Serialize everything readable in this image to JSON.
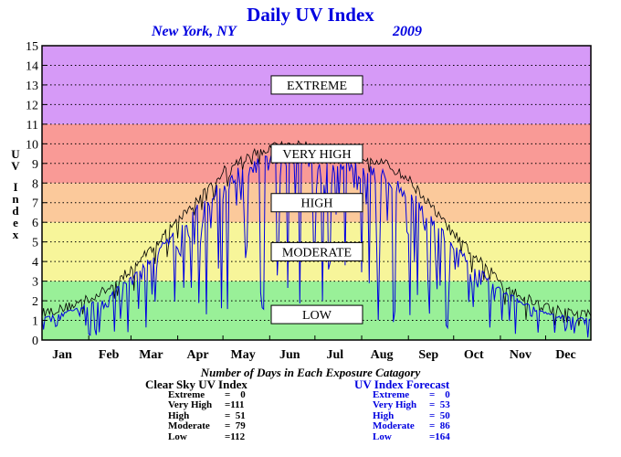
{
  "title": "Daily UV Index",
  "location": "New York, NY",
  "year": "2009",
  "ylabel": "UV Index",
  "colors": {
    "low": "#99f098",
    "moderate": "#f7f59a",
    "high": "#fbc99b",
    "very_high": "#f99a96",
    "extreme": "#d69af7",
    "clear_sky_line": "#000000",
    "forecast_line": "#0000e0"
  },
  "chart_data": {
    "type": "line",
    "title": "Daily UV Index",
    "ylabel": "UV Index",
    "ylim": [
      0,
      15
    ],
    "yticks": [
      0,
      1,
      2,
      3,
      4,
      5,
      6,
      7,
      8,
      9,
      10,
      11,
      12,
      13,
      14,
      15
    ],
    "grid": true,
    "xlim": [
      1,
      365
    ],
    "month_ticks": [
      {
        "label": "Jan",
        "day": 1
      },
      {
        "label": "Feb",
        "day": 32
      },
      {
        "label": "Mar",
        "day": 60
      },
      {
        "label": "Apr",
        "day": 91
      },
      {
        "label": "May",
        "day": 121
      },
      {
        "label": "Jun",
        "day": 152
      },
      {
        "label": "Jul",
        "day": 182
      },
      {
        "label": "Aug",
        "day": 213
      },
      {
        "label": "Sep",
        "day": 244
      },
      {
        "label": "Oct",
        "day": 274
      },
      {
        "label": "Nov",
        "day": 305
      },
      {
        "label": "Dec",
        "day": 335
      }
    ],
    "bands": [
      {
        "label": "LOW",
        "from": 0,
        "to": 3,
        "color": "#99f098"
      },
      {
        "label": "MODERATE",
        "from": 3,
        "to": 6,
        "color": "#f7f59a"
      },
      {
        "label": "HIGH",
        "from": 6,
        "to": 8,
        "color": "#fbc99b"
      },
      {
        "label": "VERY HIGH",
        "from": 8,
        "to": 11,
        "color": "#f99a96"
      },
      {
        "label": "EXTREME",
        "from": 11,
        "to": 15,
        "color": "#d69af7"
      }
    ],
    "series": [
      {
        "name": "Clear Sky UV Index",
        "color": "#000000",
        "anchors": [
          [
            1,
            1.4
          ],
          [
            15,
            1.6
          ],
          [
            32,
            2.1
          ],
          [
            45,
            2.6
          ],
          [
            60,
            3.6
          ],
          [
            75,
            4.8
          ],
          [
            91,
            6.1
          ],
          [
            105,
            7.2
          ],
          [
            121,
            8.6
          ],
          [
            136,
            9.3
          ],
          [
            152,
            9.8
          ],
          [
            166,
            10.0
          ],
          [
            182,
            9.8
          ],
          [
            197,
            9.6
          ],
          [
            213,
            9.4
          ],
          [
            228,
            9.0
          ],
          [
            244,
            8.2
          ],
          [
            258,
            6.9
          ],
          [
            274,
            5.4
          ],
          [
            289,
            4.2
          ],
          [
            305,
            3.0
          ],
          [
            320,
            2.2
          ],
          [
            335,
            1.7
          ],
          [
            350,
            1.4
          ],
          [
            365,
            1.3
          ]
        ]
      },
      {
        "name": "UV Index Forecast",
        "color": "#0000e0",
        "anchors": [
          [
            1,
            1.2
          ],
          [
            15,
            1.4
          ],
          [
            32,
            1.8
          ],
          [
            45,
            2.3
          ],
          [
            60,
            3.2
          ],
          [
            75,
            4.4
          ],
          [
            91,
            5.6
          ],
          [
            105,
            6.8
          ],
          [
            121,
            8.0
          ],
          [
            136,
            8.8
          ],
          [
            152,
            9.2
          ],
          [
            166,
            9.4
          ],
          [
            182,
            9.2
          ],
          [
            197,
            9.0
          ],
          [
            213,
            8.8
          ],
          [
            228,
            8.4
          ],
          [
            244,
            7.6
          ],
          [
            258,
            6.3
          ],
          [
            274,
            4.8
          ],
          [
            289,
            3.7
          ],
          [
            305,
            2.6
          ],
          [
            320,
            1.9
          ],
          [
            335,
            1.4
          ],
          [
            350,
            1.2
          ],
          [
            365,
            1.1
          ]
        ]
      }
    ]
  },
  "summary": {
    "heading": "Number of Days in Each Exposure Catagory",
    "clear_sky": {
      "title": "Clear Sky UV Index",
      "rows": [
        {
          "label": "Extreme",
          "value": "=    0"
        },
        {
          "label": "Very High",
          "value": "=111"
        },
        {
          "label": "High",
          "value": "=  51"
        },
        {
          "label": "Moderate",
          "value": "=  79"
        },
        {
          "label": "Low",
          "value": "=112"
        }
      ]
    },
    "forecast": {
      "title": "UV Index Forecast",
      "rows": [
        {
          "label": "Extreme",
          "value": "=    0"
        },
        {
          "label": "Very High",
          "value": "=  53"
        },
        {
          "label": "High",
          "value": "=  50"
        },
        {
          "label": "Moderate",
          "value": "=  86"
        },
        {
          "label": "Low",
          "value": "=164"
        }
      ]
    }
  }
}
